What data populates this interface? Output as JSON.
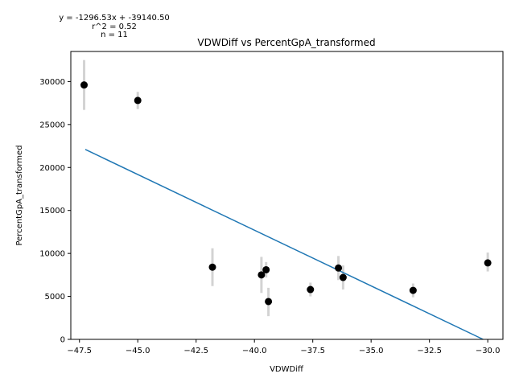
{
  "chart_data": {
    "type": "scatter",
    "title": "VDWDiff vs PercentGpA_transformed",
    "xlabel": "VDWDiff",
    "ylabel": "PercentGpA_transformed",
    "xlim": [
      -47.87,
      -29.35
    ],
    "ylim": [
      0,
      33500
    ],
    "xticks": [
      -47.5,
      -45.0,
      -42.5,
      -40.0,
      -37.5,
      -35.0,
      -32.5,
      -30.0
    ],
    "xtick_labels": [
      "−47.5",
      "−45.0",
      "−42.5",
      "−40.0",
      "−37.5",
      "−35.0",
      "−32.5",
      "−30.0"
    ],
    "yticks": [
      0,
      5000,
      10000,
      15000,
      20000,
      25000,
      30000
    ],
    "ytick_labels": [
      "0",
      "5000",
      "10000",
      "15000",
      "20000",
      "25000",
      "30000"
    ],
    "grid": false,
    "legend": "none",
    "points": [
      {
        "x": -47.3,
        "y": 29600,
        "err_low": 26700,
        "err_high": 32500
      },
      {
        "x": -45.0,
        "y": 27800,
        "err_low": 26800,
        "err_high": 28800
      },
      {
        "x": -41.8,
        "y": 8400,
        "err_low": 6200,
        "err_high": 10600
      },
      {
        "x": -39.7,
        "y": 7500,
        "err_low": 5400,
        "err_high": 9600
      },
      {
        "x": -39.5,
        "y": 8100,
        "err_low": 7200,
        "err_high": 9000
      },
      {
        "x": -39.4,
        "y": 4400,
        "err_low": 2700,
        "err_high": 6000
      },
      {
        "x": -37.6,
        "y": 5800,
        "err_low": 5000,
        "err_high": 6600
      },
      {
        "x": -36.4,
        "y": 8300,
        "err_low": 6900,
        "err_high": 9700
      },
      {
        "x": -36.2,
        "y": 7200,
        "err_low": 5800,
        "err_high": 8600
      },
      {
        "x": -33.2,
        "y": 5700,
        "err_low": 4900,
        "err_high": 6500
      },
      {
        "x": -30.0,
        "y": 8900,
        "err_low": 7900,
        "err_high": 10100
      }
    ],
    "fit_line": {
      "x": [
        -47.25,
        -30.2
      ],
      "y": [
        22100,
        0
      ]
    },
    "colors": {
      "points": "#000000",
      "errorbars": "#d3d3d3",
      "fit": "#1f77b4"
    },
    "annotations": {
      "equation": "y = -1296.53x + -39140.50",
      "r2": "r^2 = 0.52",
      "n": "n = 11"
    }
  }
}
